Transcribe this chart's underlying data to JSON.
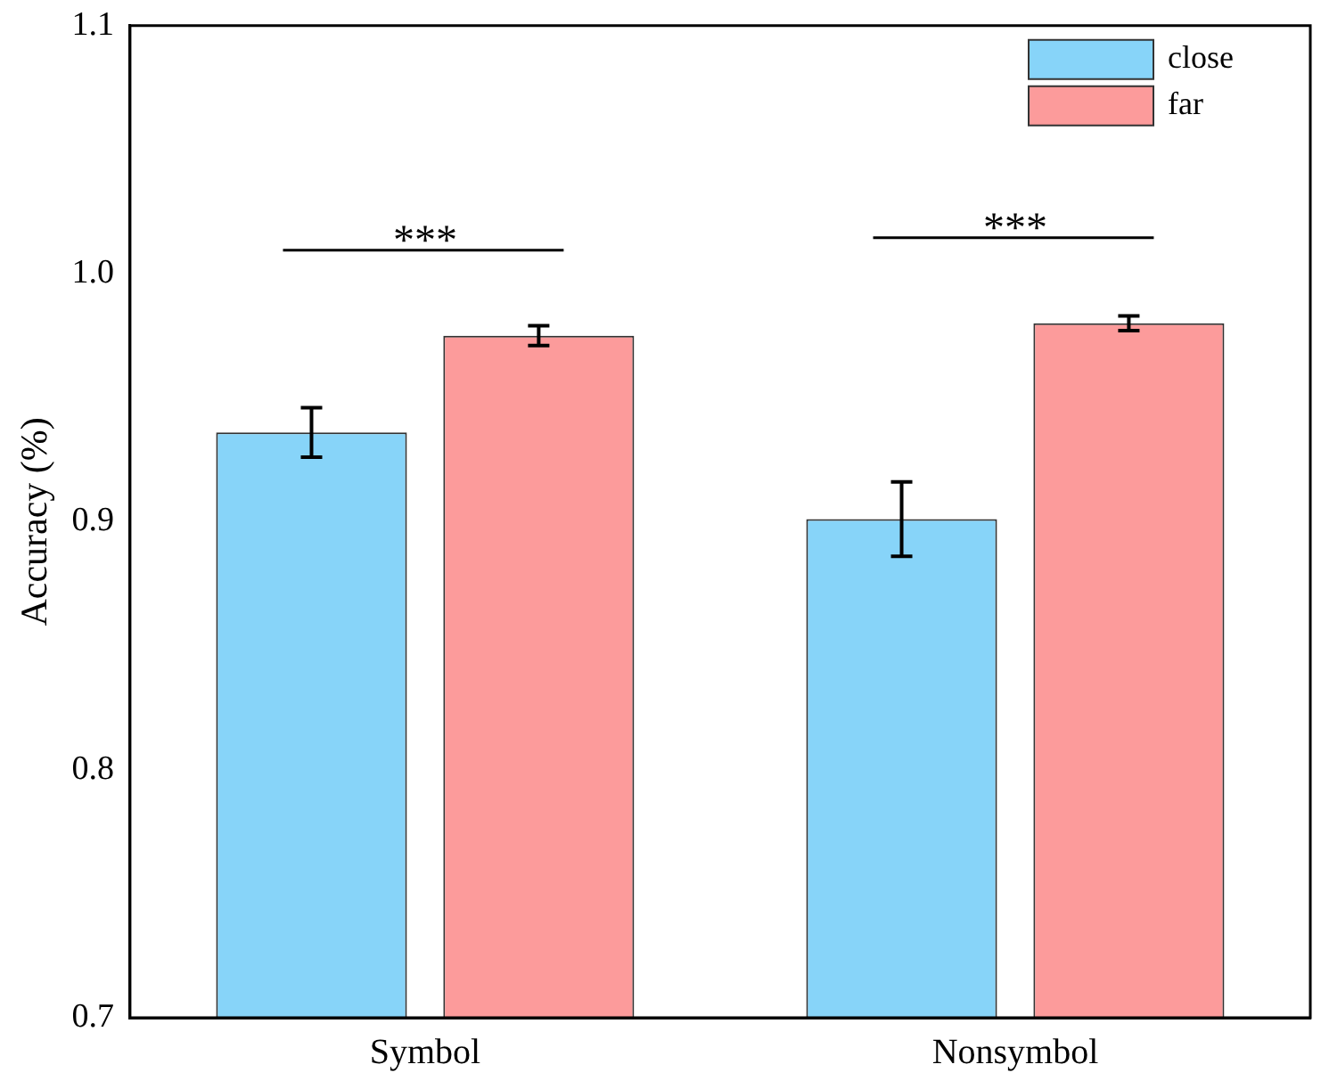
{
  "chart_data": {
    "type": "bar",
    "ylabel": "Accuracy (%)",
    "categories": [
      "Symbol",
      "Nonsymbol"
    ],
    "series": [
      {
        "name": "close",
        "color": "#87d4f9",
        "values": [
          0.936,
          0.901
        ],
        "errors": [
          0.01,
          0.015
        ]
      },
      {
        "name": "far",
        "color": "#fc9b9b",
        "values": [
          0.975,
          0.98
        ],
        "errors": [
          0.004,
          0.003
        ]
      }
    ],
    "ylim": [
      0.7,
      1.1
    ],
    "yticks": [
      0.7,
      0.8,
      0.9,
      {
        "value": 1.0,
        "label": "1.0"
      },
      1.1
    ],
    "annotations": [
      "***",
      "***"
    ],
    "legend": "top right",
    "grid": false
  }
}
